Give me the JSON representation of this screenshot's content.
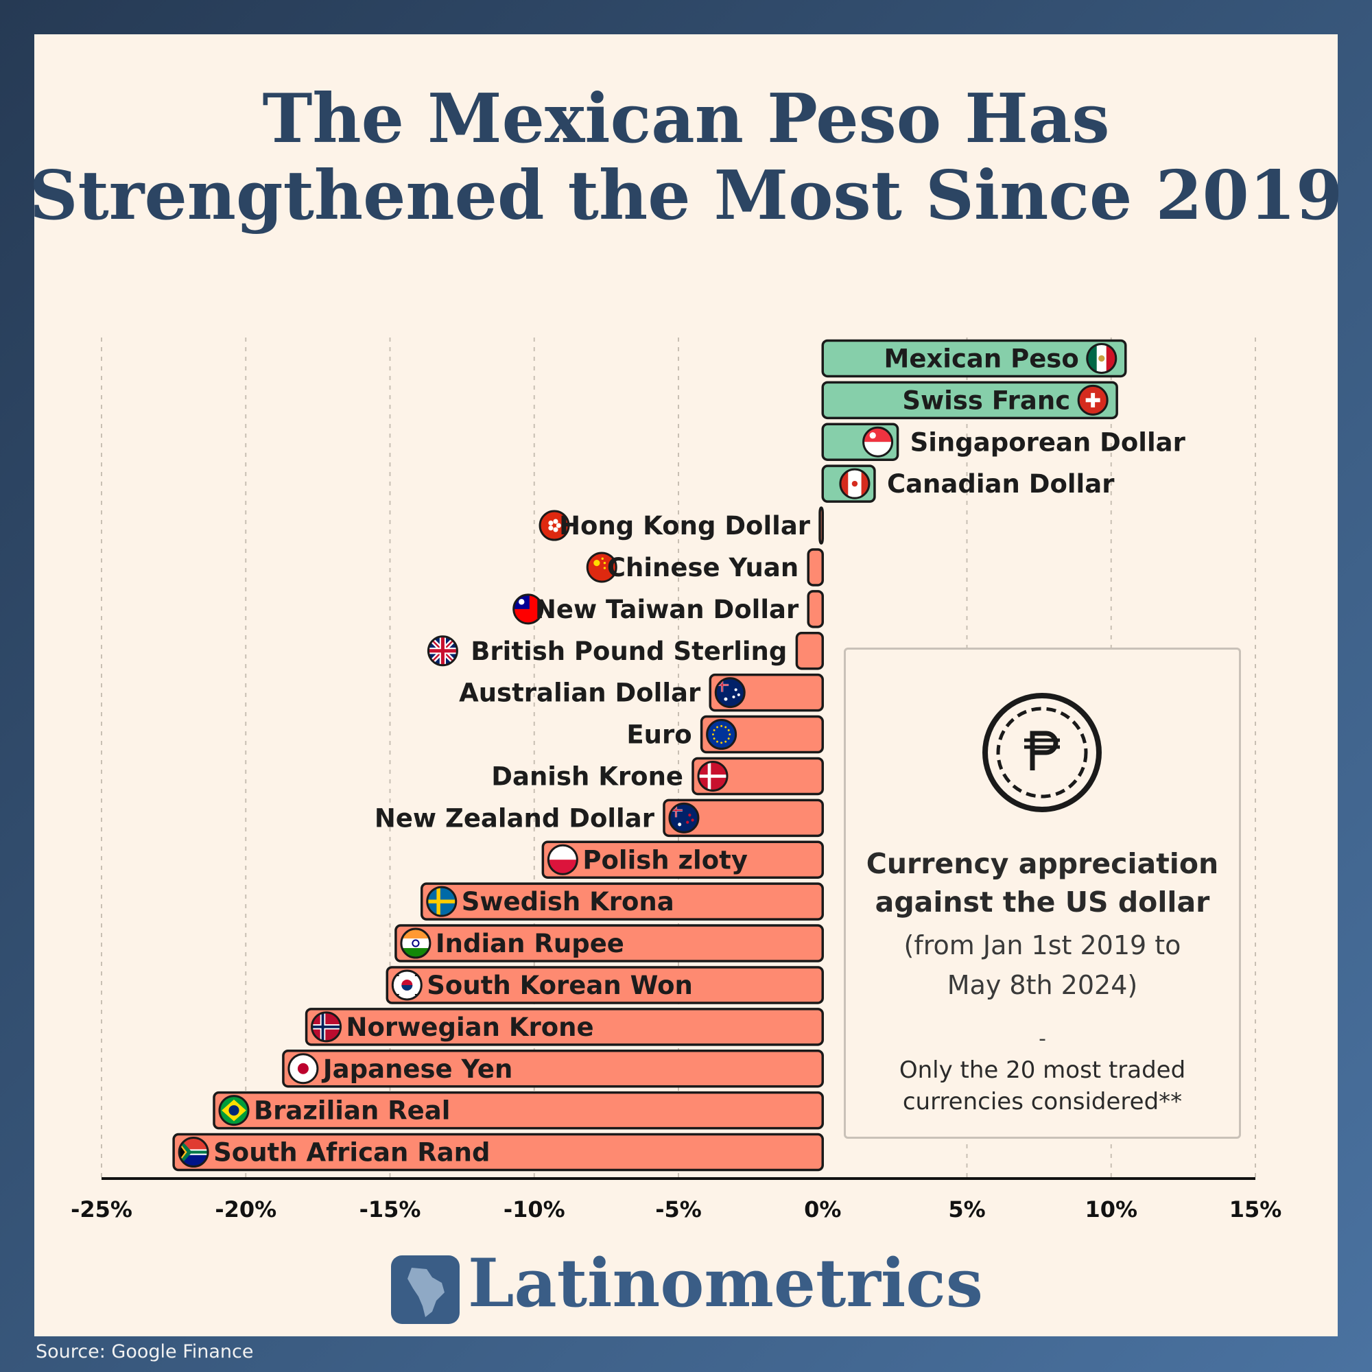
{
  "title": {
    "line1": "The Mexican Peso Has",
    "line2": "Strengthened the Most Since 2019"
  },
  "info_box": {
    "heading_line1": "Currency appreciation",
    "heading_line2": "against the US dollar",
    "range_line1": "(from Jan 1st 2019 to",
    "range_line2": "May 8th 2024)",
    "dash": "-",
    "note_line1": "Only the 20 most traded",
    "note_line2": "currencies considered**"
  },
  "brand": {
    "name": "Latinometrics"
  },
  "source": "Source: Google Finance",
  "colors": {
    "positive": "#86cfaa",
    "negative": "#fe8a71",
    "outline": "#1a1a1a",
    "title": "#2c4563"
  },
  "chart_data": {
    "type": "bar",
    "orientation": "horizontal",
    "xlim": [
      -25,
      15
    ],
    "x_ticks": [
      "-25%",
      "-20%",
      "-15%",
      "-10%",
      "-5%",
      "0%",
      "5%",
      "10%",
      "15%"
    ],
    "grid": "vertical dashed",
    "categories": [
      "Mexican Peso",
      "Swiss Franc",
      "Singaporean Dollar",
      "Canadian Dollar",
      "Hong Kong Dollar",
      "Chinese Yuan",
      "New Taiwan Dollar",
      "British Pound Sterling",
      "Australian Dollar",
      "Euro",
      "Danish Krone",
      "New Zealand Dollar",
      "Polish zloty",
      "Swedish Krona",
      "Indian Rupee",
      "South Korean Won",
      "Norwegian Krone",
      "Japanese Yen",
      "Brazilian Real",
      "South African Rand"
    ],
    "values": [
      10.5,
      10.2,
      2.6,
      1.8,
      -0.1,
      -0.5,
      -0.5,
      -0.9,
      -3.9,
      -4.2,
      -4.5,
      -5.5,
      -9.7,
      -13.9,
      -14.8,
      -15.1,
      -17.9,
      -18.7,
      -21.1,
      -22.5
    ],
    "flags": [
      "mx",
      "ch",
      "sg",
      "ca",
      "hk",
      "cn",
      "tw",
      "gb",
      "au",
      "eu",
      "dk",
      "nz",
      "pl",
      "se",
      "in",
      "kr",
      "no",
      "jp",
      "br",
      "za"
    ]
  }
}
